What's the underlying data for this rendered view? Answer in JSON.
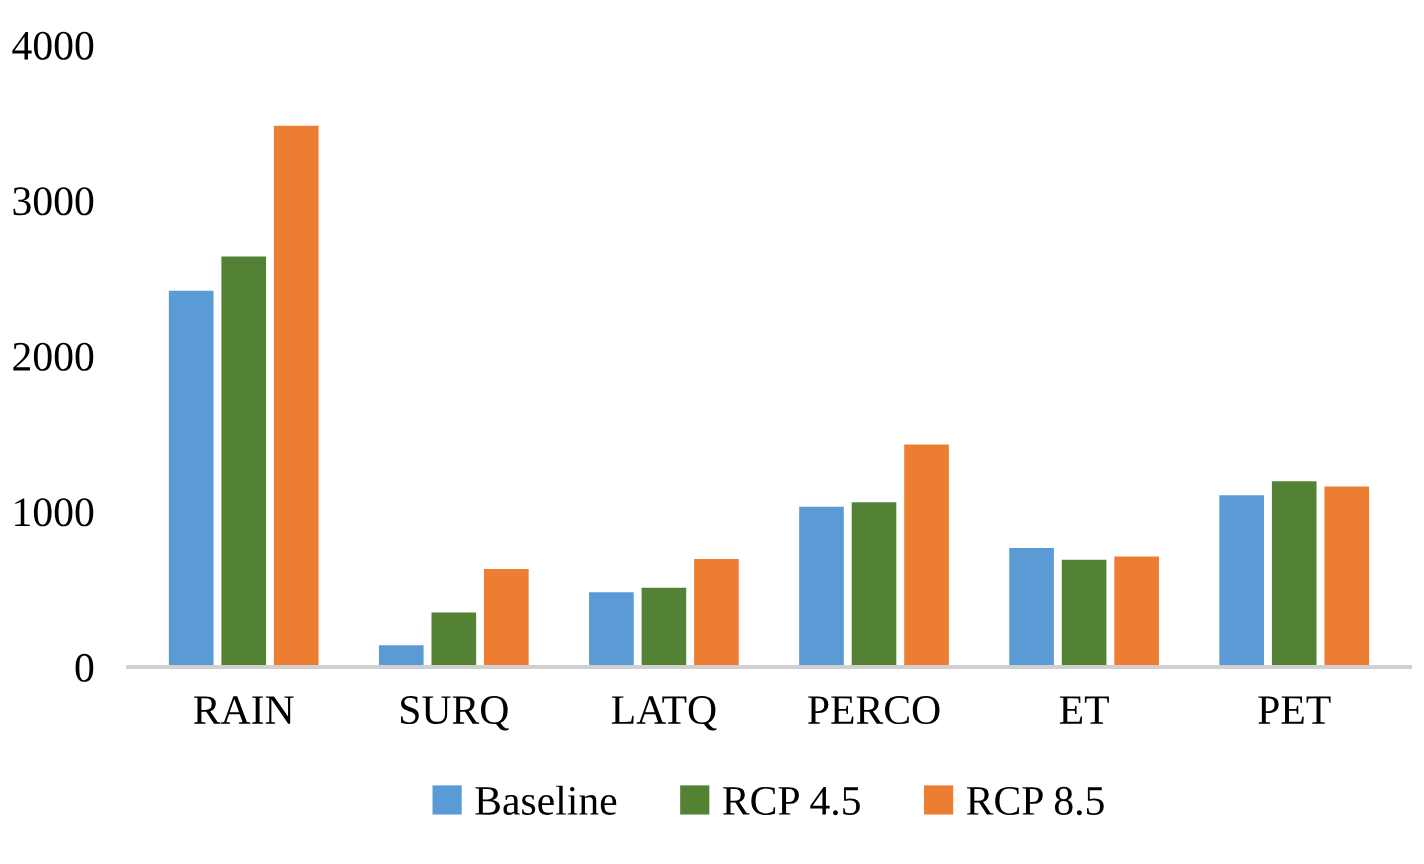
{
  "chart_data": {
    "type": "bar",
    "categories": [
      "RAIN",
      "SURQ",
      "LATQ",
      "PERCO",
      "ET",
      "PET"
    ],
    "series": [
      {
        "name": "Baseline",
        "color": "#5b9bd5",
        "values": [
          2420,
          140,
          480,
          1030,
          765,
          1105
        ]
      },
      {
        "name": "RCP 4.5",
        "color": "#548235",
        "values": [
          2640,
          350,
          510,
          1060,
          690,
          1195
        ]
      },
      {
        "name": "RCP 8.5",
        "color": "#ed7d31",
        "values": [
          3480,
          630,
          695,
          1430,
          710,
          1160
        ]
      }
    ],
    "ylim": [
      0,
      4000
    ],
    "yticks": [
      0,
      1000,
      2000,
      3000,
      4000
    ],
    "grid": false,
    "legend": "bottom"
  }
}
